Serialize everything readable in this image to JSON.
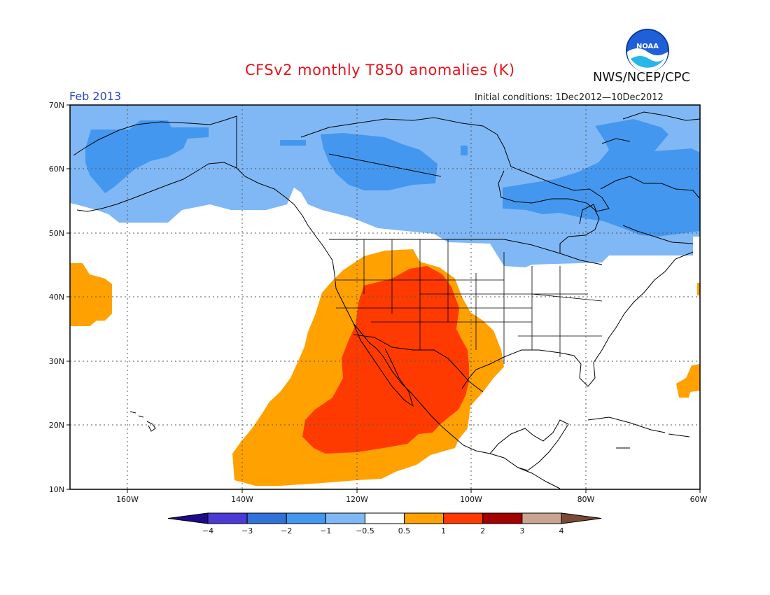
{
  "title": "CFSv2 monthly T850 anomalies (K)",
  "org": "NWS/NCEP/CPC",
  "period": "Feb 2013",
  "initial_conditions": "Initial conditions: 1Dec2012—10Dec2012",
  "logo_text": "NOAA",
  "map": {
    "lat_labels": [
      "70N",
      "60N",
      "50N",
      "40N",
      "30N",
      "20N",
      "10N"
    ],
    "lon_labels": [
      "160W",
      "140W",
      "120W",
      "100W",
      "80W",
      "60W"
    ]
  },
  "colorbar": {
    "labels": [
      "−4",
      "−3",
      "−2",
      "−1",
      "−0.5",
      "0.5",
      "1",
      "2",
      "3",
      "4"
    ],
    "colors": [
      "#1e0a8c",
      "#4b3ad3",
      "#2f73d8",
      "#4497ee",
      "#80b8f5",
      "#ffffff",
      "#ffa100",
      "#ff3a00",
      "#a30000",
      "#c9a48f",
      "#7a4a35"
    ]
  },
  "colors": {
    "title": "#e8121b",
    "period": "#2a48c6",
    "neg_light": "#80b8f5",
    "neg_mid": "#4497ee",
    "pos_light": "#ffa100",
    "pos_mid": "#ff3a00"
  }
}
